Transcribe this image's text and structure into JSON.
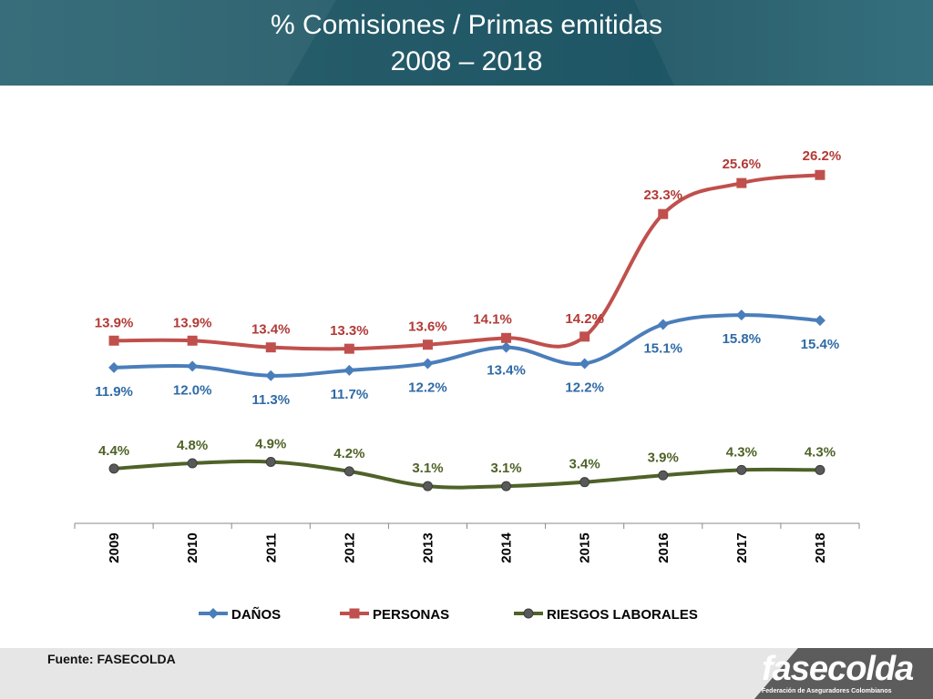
{
  "header": {
    "title_line1": "% Comisiones / Primas emitidas",
    "title_line2": "2008 – 2018"
  },
  "footer": {
    "source": "Fuente: FASECOLDA",
    "logo_text": "fasecolda",
    "logo_subtext": "Federación de Aseguradores Colombianos"
  },
  "chart_data": {
    "type": "line",
    "title": "% Comisiones / Primas emitidas 2008 – 2018",
    "categories": [
      "2009",
      "2010",
      "2011",
      "2012",
      "2013",
      "2014",
      "2015",
      "2016",
      "2017",
      "2018"
    ],
    "ylim": [
      0,
      30
    ],
    "grid": false,
    "legend": "bottom",
    "series": [
      {
        "name": "DAÑOS",
        "color": "#4a7ebb",
        "marker": "diamond",
        "values": [
          11.9,
          12.0,
          11.3,
          11.7,
          12.2,
          13.4,
          12.2,
          15.1,
          15.8,
          15.4
        ],
        "labels": [
          "11.9%",
          "12.0%",
          "11.3%",
          "11.7%",
          "12.2%",
          "13.4%",
          "12.2%",
          "15.1%",
          "15.8%",
          "15.4%"
        ]
      },
      {
        "name": "PERSONAS",
        "color": "#c0504d",
        "marker": "square",
        "values": [
          13.9,
          13.9,
          13.4,
          13.3,
          13.6,
          14.1,
          14.2,
          23.3,
          25.6,
          26.2
        ],
        "labels": [
          "13.9%",
          "13.9%",
          "13.4%",
          "13.3%",
          "13.6%",
          "14.1%",
          "14.2%",
          "23.3%",
          "25.6%",
          "26.2%"
        ]
      },
      {
        "name": "RIESGOS LABORALES",
        "color": "#4f6228",
        "marker": "circle",
        "values": [
          4.4,
          4.8,
          4.9,
          4.2,
          3.1,
          3.1,
          3.4,
          3.9,
          4.3,
          4.3
        ],
        "labels": [
          "4.4%",
          "4.8%",
          "4.9%",
          "4.2%",
          "3.1%",
          "3.1%",
          "3.4%",
          "3.9%",
          "4.3%",
          "4.3%"
        ]
      }
    ]
  }
}
